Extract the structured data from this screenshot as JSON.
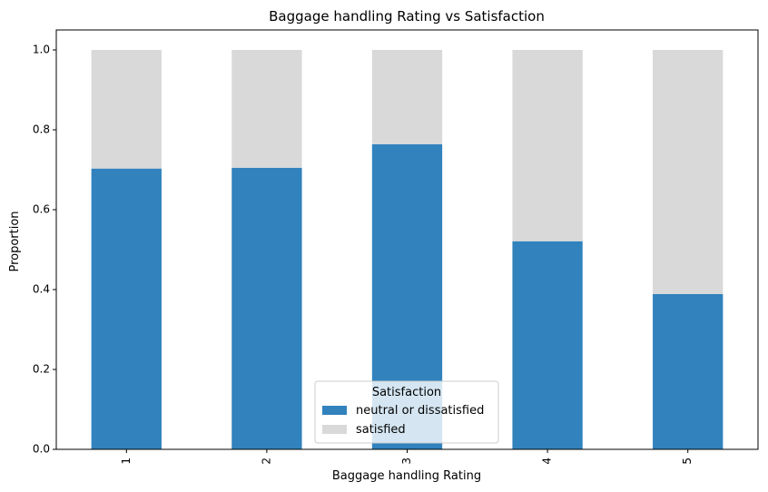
{
  "chart_data": {
    "type": "bar",
    "stacked": true,
    "title": "Baggage handling Rating vs Satisfaction",
    "xlabel": "Baggage handling Rating",
    "ylabel": "Proportion",
    "categories": [
      "1",
      "2",
      "3",
      "4",
      "5"
    ],
    "series": [
      {
        "name": "neutral or dissatisfied",
        "values": [
          0.703,
          0.705,
          0.764,
          0.521,
          0.389
        ],
        "color": "#3182bd"
      },
      {
        "name": "satisfied",
        "values": [
          0.297,
          0.295,
          0.236,
          0.479,
          0.611
        ],
        "color": "#d9d9d9"
      }
    ],
    "ylim": [
      0,
      1.05
    ],
    "yticks": [
      "0.0",
      "0.2",
      "0.4",
      "0.6",
      "0.8",
      "1.0"
    ],
    "grid": false,
    "legend": {
      "title": "Satisfaction",
      "placement": "bottom-center"
    }
  }
}
